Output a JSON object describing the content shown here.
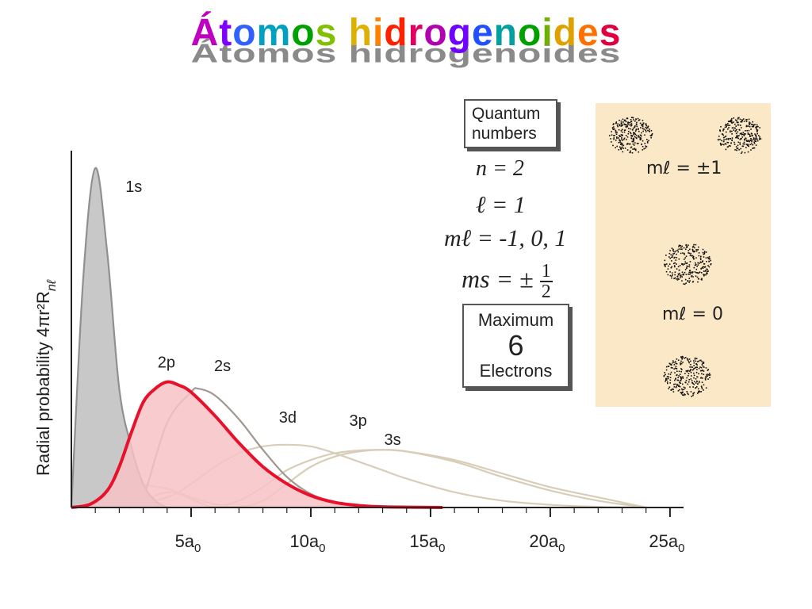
{
  "title": "Átomos hidrogenoides",
  "title_colors": [
    "#c000c0",
    "#8000ff",
    "#3060ff",
    "#00a0c0",
    "#00a000",
    "#80c000",
    "#e0b000",
    "#ff8000",
    "#ff2000",
    "#e00060",
    "#b000b0",
    "#7000ff",
    "#2050ff",
    "#00a0a0",
    "#00a000",
    "#70b000",
    "#e0a000",
    "#ff7000",
    "#e00040",
    "#9000c0"
  ],
  "chart_data": {
    "type": "area",
    "ylabel": "Radial probability 4πr²R",
    "ylabel_sub": "nℓ",
    "x_ticks": [
      {
        "value": 5,
        "label": "5a",
        "sub": "0"
      },
      {
        "value": 10,
        "label": "10a",
        "sub": "0"
      },
      {
        "value": 15,
        "label": "15a",
        "sub": "0"
      },
      {
        "value": 20,
        "label": "20a",
        "sub": "0"
      },
      {
        "value": 25,
        "label": "25a",
        "sub": "0"
      }
    ],
    "xlim": [
      0,
      25.5
    ],
    "minor_tick_step": 1,
    "series": [
      {
        "name": "1s",
        "color": "#909090",
        "fill": "#c8c8c8",
        "highlight": false,
        "x": [
          0,
          0.5,
          1,
          1.5,
          2,
          2.5,
          3,
          3.5,
          4
        ],
        "y": [
          0,
          0.68,
          1.0,
          0.75,
          0.35,
          0.18,
          0.07,
          0.02,
          0
        ]
      },
      {
        "name": "2s",
        "color": "#a09890",
        "fill": "none",
        "highlight": false,
        "x": [
          0,
          0.7,
          1.3,
          2,
          2.5,
          3,
          4,
          5,
          5.3,
          6,
          7,
          8,
          9,
          10,
          11,
          12
        ],
        "y": [
          0,
          0.09,
          0.07,
          0.01,
          0,
          0.03,
          0.25,
          0.34,
          0.35,
          0.33,
          0.26,
          0.17,
          0.09,
          0.04,
          0.015,
          0
        ]
      },
      {
        "name": "2p",
        "color": "#e8102a",
        "fill": "#f7c3c5",
        "highlight": true,
        "x": [
          0,
          0.8,
          1.5,
          2,
          2.5,
          3,
          3.5,
          4,
          4.5,
          5,
          6,
          7,
          8,
          9,
          10,
          11,
          12,
          13,
          14,
          15.5
        ],
        "y": [
          0,
          0.01,
          0.05,
          0.12,
          0.22,
          0.31,
          0.35,
          0.37,
          0.36,
          0.34,
          0.27,
          0.19,
          0.12,
          0.07,
          0.035,
          0.015,
          0.006,
          0.002,
          0.001,
          0
        ]
      },
      {
        "name": "3d",
        "color": "#d8cdb8",
        "fill": "none",
        "highlight": false,
        "x": [
          0,
          2,
          4,
          5,
          6,
          7,
          8,
          9,
          10,
          11,
          12,
          13,
          14,
          16,
          18,
          20,
          22,
          24
        ],
        "y": [
          0,
          0.002,
          0.03,
          0.07,
          0.12,
          0.16,
          0.18,
          0.185,
          0.18,
          0.16,
          0.135,
          0.11,
          0.085,
          0.045,
          0.02,
          0.008,
          0.002,
          0
        ]
      },
      {
        "name": "3p",
        "color": "#d8cdb8",
        "fill": "none",
        "highlight": false,
        "x": [
          0,
          1,
          2,
          3,
          4,
          5,
          6,
          7,
          8,
          9,
          10,
          11,
          12,
          13,
          14,
          16,
          18,
          20,
          22,
          24
        ],
        "y": [
          0,
          0.01,
          0.05,
          0.065,
          0.055,
          0.03,
          0.01,
          0.002,
          0.02,
          0.07,
          0.12,
          0.15,
          0.165,
          0.17,
          0.165,
          0.135,
          0.09,
          0.05,
          0.02,
          0
        ]
      },
      {
        "name": "3s",
        "color": "#d8cdb8",
        "fill": "none",
        "highlight": false,
        "x": [
          0,
          0.5,
          1,
          1.5,
          2,
          2.5,
          3,
          3.5,
          4,
          4.5,
          5,
          5.5,
          6,
          7,
          8,
          9,
          10,
          11,
          12,
          13,
          14,
          16,
          18,
          20,
          22,
          24
        ],
        "y": [
          0,
          0.02,
          0.03,
          0.02,
          0.005,
          0,
          0.015,
          0.035,
          0.045,
          0.04,
          0.025,
          0.01,
          0.002,
          0.02,
          0.06,
          0.11,
          0.14,
          0.16,
          0.168,
          0.17,
          0.165,
          0.14,
          0.1,
          0.06,
          0.03,
          0
        ]
      }
    ]
  },
  "quantum": {
    "box_line1": "Quantum",
    "box_line2": "numbers",
    "n": "n = 2",
    "l": "ℓ = 1",
    "ml": "mℓ = -1, 0, 1",
    "ms_prefix": "ms = ±",
    "ms_num": "1",
    "ms_den": "2",
    "max_line1": "Maximum",
    "max_num": "6",
    "max_line3": "Electrons"
  },
  "orbitals": {
    "label_pm1": "mℓ = ±1",
    "label_0": "mℓ = 0"
  }
}
